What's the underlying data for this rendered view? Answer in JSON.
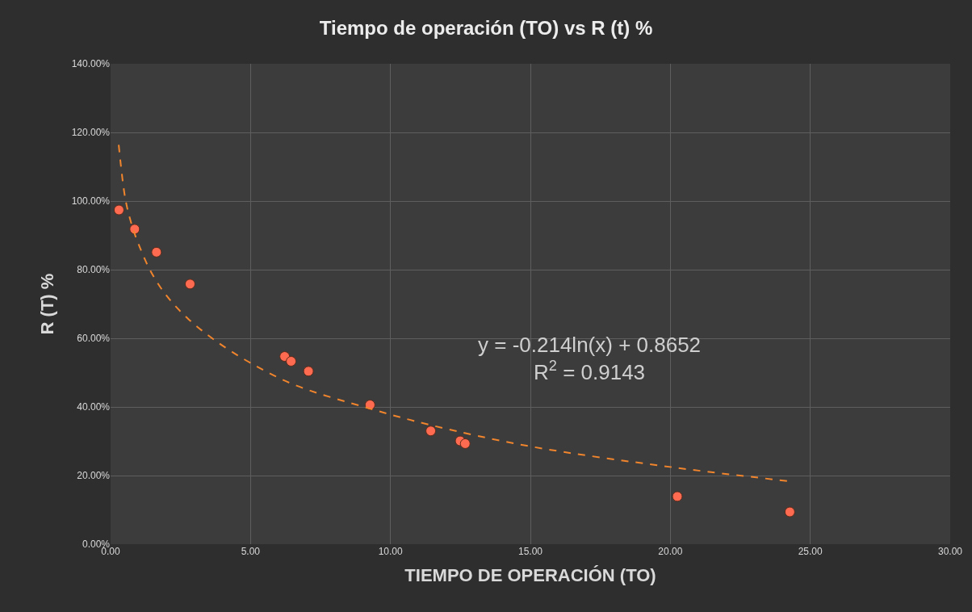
{
  "chart_data": {
    "type": "scatter",
    "title": "Tiempo de operación (TO) vs R (t) %",
    "xlabel": "TIEMPO DE OPERACIÓN (TO)",
    "ylabel": "R (T) %",
    "series": [
      {
        "color": "#ff6b50",
        "marker": "circle",
        "x": [
          0.3,
          0.86,
          1.64,
          2.84,
          6.22,
          6.45,
          7.07,
          9.27,
          11.44,
          12.49,
          12.67,
          20.25,
          24.27
        ],
        "values": [
          0.974,
          0.918,
          0.851,
          0.758,
          0.547,
          0.533,
          0.504,
          0.406,
          0.33,
          0.301,
          0.293,
          0.139,
          0.094
        ]
      },
      {
        "type": "line",
        "color": "#f0852d",
        "line_style": "dashed",
        "marker": "none",
        "x": [
          0.29,
          0.53,
          0.77,
          1.01,
          1.44,
          2.01,
          2.78,
          3.73,
          4.98,
          6.58,
          9.27,
          11.44,
          15,
          20,
          24.2
        ],
        "values": [
          1.164,
          1.005,
          0.927,
          0.872,
          0.794,
          0.723,
          0.656,
          0.594,
          0.529,
          0.464,
          0.395,
          0.347,
          0.285,
          0.225,
          0.184
        ]
      }
    ],
    "xlim": [
      0,
      30
    ],
    "xticks": [
      {
        "value": 0,
        "label": "0.00"
      },
      {
        "value": 5,
        "label": "5.00"
      },
      {
        "value": 10,
        "label": "10.00"
      },
      {
        "value": 15,
        "label": "15.00"
      },
      {
        "value": 20,
        "label": "20.00"
      },
      {
        "value": 25,
        "label": "25.00"
      },
      {
        "value": 30,
        "label": "30.00"
      }
    ],
    "ylim": [
      0,
      1.4
    ],
    "yticks": [
      {
        "value": 0,
        "label": "0.00%"
      },
      {
        "value": 0.2,
        "label": "20.00%"
      },
      {
        "value": 0.4,
        "label": "40.00%"
      },
      {
        "value": 0.6,
        "label": "60.00%"
      },
      {
        "value": 0.8,
        "label": "80.00%"
      },
      {
        "value": 1.0,
        "label": "100.00%"
      },
      {
        "value": 1.2,
        "label": "120.00%"
      },
      {
        "value": 1.4,
        "label": "140.00%"
      }
    ],
    "grid": true,
    "annotations": [
      "y = -0.214ln(x) + 0.8652\nR$^{2}$ = 0.9143"
    ]
  }
}
